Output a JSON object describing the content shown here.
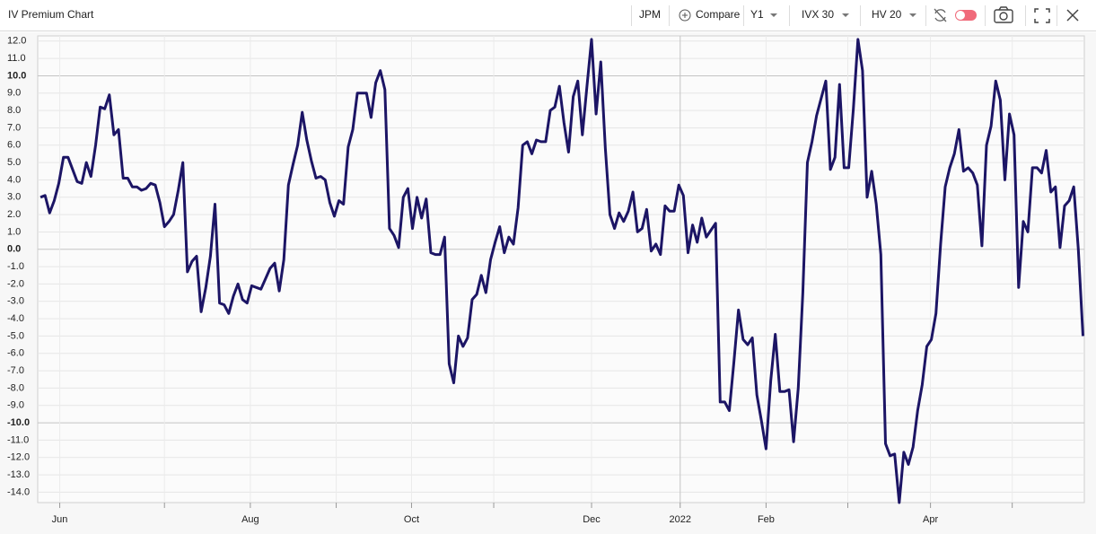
{
  "toolbar": {
    "title": "IV Premium Chart",
    "symbol": "JPM",
    "compare": "Compare",
    "period": "Y1",
    "iv": "IVX 30",
    "hv": "HV 20"
  },
  "chart_data": {
    "type": "line",
    "color": "#1c1565",
    "grid": true,
    "ylim": [
      -14.6,
      12.3
    ],
    "yticks": [
      {
        "value": 12,
        "label": "12.0"
      },
      {
        "value": 11,
        "label": "11.0"
      },
      {
        "value": 10,
        "label": "10.0"
      },
      {
        "value": 9,
        "label": "9.0"
      },
      {
        "value": 8,
        "label": "8.0"
      },
      {
        "value": 7,
        "label": "7.0"
      },
      {
        "value": 6,
        "label": "6.0"
      },
      {
        "value": 5,
        "label": "5.0"
      },
      {
        "value": 4,
        "label": "4.0"
      },
      {
        "value": 3,
        "label": "3.0"
      },
      {
        "value": 2,
        "label": "2.0"
      },
      {
        "value": 1,
        "label": "1.0"
      },
      {
        "value": 0,
        "label": "0.0"
      },
      {
        "value": -1,
        "label": "-1.0"
      },
      {
        "value": -2,
        "label": "-2.0"
      },
      {
        "value": -3,
        "label": "-3.0"
      },
      {
        "value": -4,
        "label": "-4.0"
      },
      {
        "value": -5,
        "label": "-5.0"
      },
      {
        "value": -6,
        "label": "-6.0"
      },
      {
        "value": -7,
        "label": "-7.0"
      },
      {
        "value": -8,
        "label": "-8.0"
      },
      {
        "value": -9,
        "label": "-9.0"
      },
      {
        "value": -10,
        "label": "-10.0"
      },
      {
        "value": -11,
        "label": "-11.0"
      },
      {
        "value": -12,
        "label": "-12.0"
      },
      {
        "value": -13,
        "label": "-13.0"
      },
      {
        "value": -14,
        "label": "-14.0"
      }
    ],
    "xlim": [
      -0.6,
      227.3
    ],
    "xticks": [
      {
        "value": 4.2,
        "label": "Jun"
      },
      {
        "value": 27,
        "label": null
      },
      {
        "value": 45.7,
        "label": "Aug"
      },
      {
        "value": 64.4,
        "label": null
      },
      {
        "value": 80.8,
        "label": "Oct"
      },
      {
        "value": 98.7,
        "label": null
      },
      {
        "value": 120,
        "label": "Dec"
      },
      {
        "value": 139.3,
        "label": "2022"
      },
      {
        "value": 158,
        "label": "Feb"
      },
      {
        "value": 175.8,
        "label": null
      },
      {
        "value": 193.8,
        "label": "Apr"
      },
      {
        "value": 211.6,
        "label": null
      }
    ],
    "values": [
      3.0,
      3.1,
      2.1,
      2.8,
      3.8,
      5.3,
      5.3,
      4.6,
      3.9,
      3.8,
      5.0,
      4.2,
      6.0,
      8.2,
      8.1,
      8.9,
      6.6,
      6.9,
      4.1,
      4.1,
      3.6,
      3.6,
      3.4,
      3.5,
      3.8,
      3.7,
      2.7,
      1.3,
      1.6,
      2.0,
      3.4,
      5.0,
      -1.3,
      -0.7,
      -0.4,
      -3.6,
      -2.2,
      -0.4,
      2.6,
      -3.1,
      -3.2,
      -3.7,
      -2.7,
      -2.0,
      -2.9,
      -3.1,
      -2.1,
      -2.2,
      -2.3,
      -1.7,
      -1.1,
      -0.8,
      -2.4,
      -0.6,
      3.7,
      4.9,
      6.0,
      7.9,
      6.3,
      5.1,
      4.1,
      4.2,
      4.0,
      2.7,
      1.9,
      2.8,
      2.6,
      5.9,
      6.9,
      9.0,
      9.0,
      9.0,
      7.6,
      9.6,
      10.3,
      9.2,
      1.2,
      0.8,
      0.1,
      3.0,
      3.5,
      1.2,
      3.0,
      1.8,
      2.9,
      -0.2,
      -0.3,
      -0.3,
      0.7,
      -6.6,
      -7.7,
      -5.0,
      -5.6,
      -5.1,
      -2.9,
      -2.6,
      -1.5,
      -2.5,
      -0.6,
      0.4,
      1.3,
      -0.2,
      0.7,
      0.3,
      2.4,
      6.0,
      6.2,
      5.5,
      6.3,
      6.2,
      6.2,
      8.0,
      8.2,
      9.4,
      7.3,
      5.6,
      8.8,
      9.7,
      6.6,
      9.4,
      12.1,
      7.8,
      10.8,
      5.8,
      2.0,
      1.2,
      2.1,
      1.6,
      2.2,
      3.3,
      1.0,
      1.2,
      2.3,
      -0.1,
      0.3,
      -0.3,
      2.5,
      2.2,
      2.2,
      3.7,
      3.1,
      -0.2,
      1.4,
      0.4,
      1.8,
      0.7,
      1.1,
      1.5,
      -8.8,
      -8.8,
      -9.3,
      -6.5,
      -3.5,
      -5.2,
      -5.5,
      -5.1,
      -8.4,
      -9.9,
      -11.5,
      -7.6,
      -4.9,
      -8.2,
      -8.2,
      -8.1,
      -11.1,
      -8.0,
      -2.5,
      5.0,
      6.2,
      7.7,
      8.7,
      9.7,
      4.6,
      5.3,
      9.5,
      4.7,
      4.7,
      8.1,
      12.1,
      10.3,
      3.0,
      4.5,
      2.6,
      -0.3,
      -11.2,
      -11.9,
      -11.8,
      -14.6,
      -11.7,
      -12.4,
      -11.4,
      -9.3,
      -7.8,
      -5.6,
      -5.2,
      -3.7,
      0.3,
      3.6,
      4.7,
      5.5,
      6.9,
      4.5,
      4.7,
      4.4,
      3.7,
      0.2,
      6.0,
      7.1,
      9.7,
      8.6,
      4.0,
      7.8,
      6.6,
      -2.2,
      1.6,
      1.0,
      4.7,
      4.7,
      4.4,
      5.7,
      3.3,
      3.6,
      0.1,
      2.5,
      2.8,
      3.6,
      0.0,
      -5.0
    ]
  }
}
